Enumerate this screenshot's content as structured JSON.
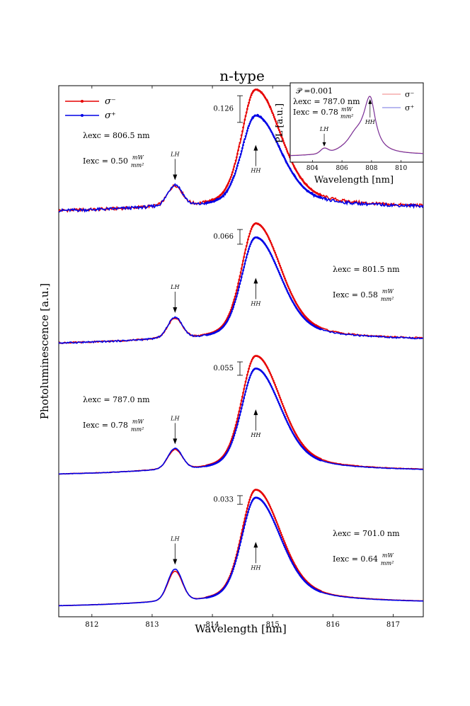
{
  "chart_data": {
    "type": "line",
    "title": "n-type",
    "xlabel": "Wavelength [nm]",
    "ylabel": "Photoluminescence [a.u.]",
    "xlim": [
      811.45,
      817.5
    ],
    "xticks": [
      812,
      813,
      814,
      815,
      816,
      817
    ],
    "legend": {
      "placement": "top-left",
      "entries": [
        {
          "label": "σ⁻",
          "color": "#e60000"
        },
        {
          "label": "σ⁺",
          "color": "#0000e6"
        }
      ]
    },
    "panels": [
      {
        "excitation_label": "λexc = 806.5 nm",
        "intensity_label": "Iexc = 0.50",
        "intensity_unit_num": "mW",
        "intensity_unit_den": "mm²",
        "label_side": "left",
        "diff_label": "0.126",
        "lh_label": "LH",
        "hh_label": "HH",
        "baseline": 0.08,
        "sigma_minus_peak": 1.0,
        "sigma_plus_peak": 0.78,
        "lh_height": 0.18,
        "noise": 0.012
      },
      {
        "excitation_label": "λexc = 801.5 nm",
        "intensity_label": "Iexc = 0.58",
        "intensity_unit_num": "mW",
        "intensity_unit_den": "mm²",
        "label_side": "right",
        "diff_label": "0.066",
        "lh_label": "LH",
        "hh_label": "HH",
        "baseline": 0.06,
        "sigma_minus_peak": 1.0,
        "sigma_plus_peak": 0.88,
        "lh_height": 0.18,
        "noise": 0.006
      },
      {
        "excitation_label": "λexc = 787.0 nm",
        "intensity_label": "Iexc = 0.78",
        "intensity_unit_num": "mW",
        "intensity_unit_den": "mm²",
        "label_side": "left",
        "diff_label": "0.055",
        "lh_label": "LH",
        "hh_label": "HH",
        "baseline": 0.03,
        "sigma_minus_peak": 1.0,
        "sigma_plus_peak": 0.89,
        "lh_height": 0.18,
        "noise": 0.002
      },
      {
        "excitation_label": "λexc = 701.0 nm",
        "intensity_label": "Iexc = 0.64",
        "intensity_unit_num": "mW",
        "intensity_unit_den": "mm²",
        "label_side": "right",
        "diff_label": "0.033",
        "lh_label": "LH",
        "hh_label": "HH",
        "baseline": 0.05,
        "sigma_minus_peak": 1.0,
        "sigma_plus_peak": 0.93,
        "lh_height": 0.28,
        "noise": 0.001
      }
    ],
    "inset": {
      "xlabel": "Wavelength [nm]",
      "ylabel": "PL [a.u.]",
      "xlim": [
        802.5,
        811.5
      ],
      "xticks": [
        804,
        806,
        808,
        810
      ],
      "polarization_label": "𝒫 =0.001",
      "excitation_label": "λexc = 787.0 nm",
      "intensity_label": "Iexc = 0.78",
      "intensity_unit_num": "mW",
      "intensity_unit_den": "mm²",
      "lh_label": "LH",
      "hh_label": "HH",
      "legend": [
        {
          "label": "σ⁻",
          "color": "#f08080"
        },
        {
          "label": "σ⁺",
          "color": "#7070e0"
        }
      ]
    }
  }
}
